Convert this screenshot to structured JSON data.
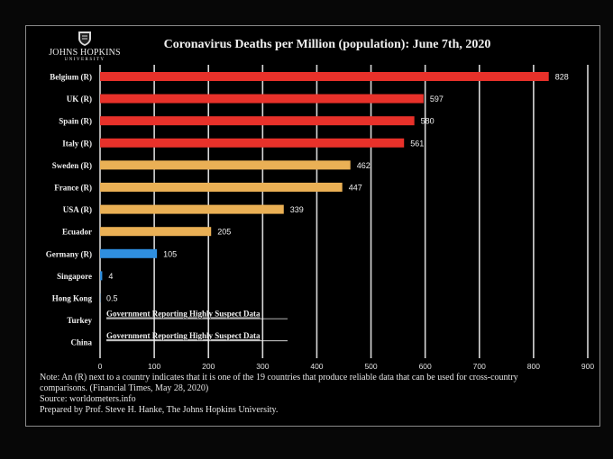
{
  "logo": {
    "line1": "JOHNS HOPKINS",
    "line2": "UNIVERSITY"
  },
  "notes": {
    "line1": "Note: An (R) next to a country indicates that it is one of the 19 countries that produce reliable data that can be used for cross-country",
    "line2": "comparisons. (Financial Times, May 28, 2020)",
    "line3": "Source: worldometers.info",
    "line4": "Prepared by Prof. Steve H. Hanke, The Johns Hopkins University."
  },
  "chart_data": {
    "type": "bar",
    "orientation": "horizontal",
    "title": "Coronavirus Deaths per Million (population): June 7th, 2020",
    "xlim": [
      0,
      900
    ],
    "xticks": [
      "0",
      "100",
      "200",
      "300",
      "400",
      "500",
      "600",
      "700",
      "800",
      "900"
    ],
    "grid": true,
    "categories": [
      "Belgium (R)",
      "UK (R)",
      "Spain (R)",
      "Italy (R)",
      "Sweden (R)",
      "France (R)",
      "USA (R)",
      "Ecuador",
      "Germany (R)",
      "Singapore",
      "Hong Kong",
      "Turkey",
      "China"
    ],
    "values": [
      828,
      597,
      580,
      561,
      462,
      447,
      339,
      205,
      105,
      4,
      0.5,
      null,
      null
    ],
    "value_labels": [
      "828",
      "597",
      "580",
      "561",
      "462",
      "447",
      "339",
      "205",
      "105",
      "4",
      "0.5",
      "",
      ""
    ],
    "text_annotations": [
      "",
      "",
      "",
      "",
      "",
      "",
      "",
      "",
      "",
      "",
      "",
      "Government Reporting Highly Suspect Data",
      "Government Reporting Highly Suspect Data"
    ],
    "bar_colors": [
      "#e8312a",
      "#e8312a",
      "#e8312a",
      "#e8312a",
      "#eab055",
      "#eab055",
      "#eab055",
      "#eab055",
      "#2f8fe0",
      "#2f8fe0",
      "#2f8fe0",
      "#2f8fe0",
      "#2f8fe0"
    ]
  }
}
